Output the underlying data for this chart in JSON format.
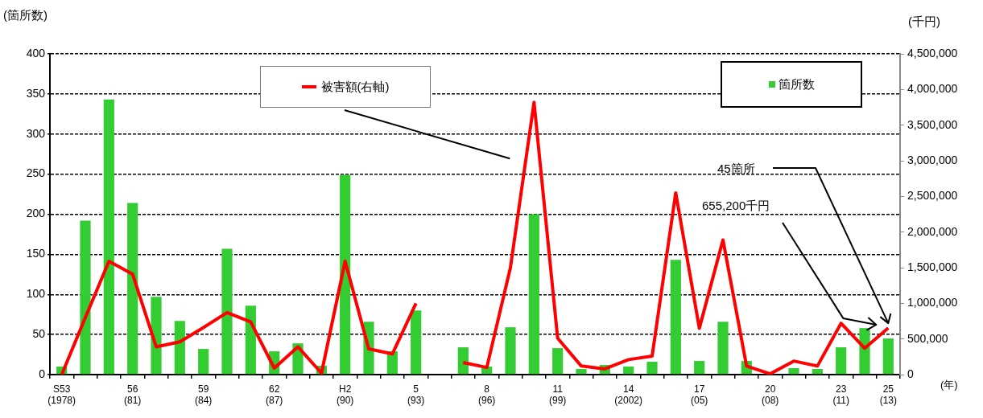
{
  "chart_data": {
    "type": "bar",
    "categories": [
      "S53\n(1978)",
      null,
      null,
      "56\n(81)",
      null,
      null,
      "59\n(84)",
      null,
      null,
      "62\n(87)",
      null,
      null,
      "H2\n(90)",
      null,
      null,
      "5\n(93)",
      null,
      null,
      "8\n(96)",
      null,
      null,
      "11\n(99)",
      null,
      null,
      "14\n(2002)",
      null,
      null,
      "17\n(05)",
      null,
      null,
      "20\n(08)",
      null,
      null,
      "23\n(11)",
      null,
      "25\n(13)"
    ],
    "series": [
      {
        "name": "箇所数",
        "color": "#33cc33",
        "values": [
          10,
          192,
          343,
          214,
          97,
          67,
          32,
          157,
          86,
          29,
          39,
          11,
          249,
          66,
          29,
          80,
          null,
          34,
          10,
          59,
          200,
          33,
          7,
          12,
          10,
          16,
          143,
          17,
          66,
          17,
          0,
          8,
          7,
          34,
          58,
          45
        ]
      },
      {
        "name": "被害額(右軸)",
        "type": "line",
        "axis": "y2",
        "color": "#ff0000",
        "values": [
          0,
          800000,
          1590000,
          1410000,
          390000,
          460000,
          660000,
          870000,
          740000,
          90000,
          390000,
          20000,
          1590000,
          360000,
          290000,
          1000000,
          null,
          170000,
          100000,
          1500000,
          3820000,
          510000,
          120000,
          80000,
          210000,
          260000,
          2550000,
          650000,
          1890000,
          120000,
          10000,
          190000,
          120000,
          720000,
          370000,
          655200
        ]
      }
    ],
    "ylabel": "(箇所数)",
    "y2label": "(千円)",
    "xlabel": "(年)",
    "ylim": [
      0,
      400
    ],
    "yticks": [
      0,
      50,
      100,
      150,
      200,
      250,
      300,
      350,
      400
    ],
    "y2lim": [
      0,
      4500000
    ],
    "y2ticks": [
      {
        "value": 0,
        "label": "0"
      },
      {
        "value": 500000,
        "label": "500,000"
      },
      {
        "value": 1000000,
        "label": "1,000,000"
      },
      {
        "value": 1500000,
        "label": "1,500,000"
      },
      {
        "value": 2000000,
        "label": "2,000,000"
      },
      {
        "value": 2500000,
        "label": "2,500,000"
      },
      {
        "value": 3000000,
        "label": "3,000,000"
      },
      {
        "value": 3500000,
        "label": "3,500,000"
      },
      {
        "value": 4000000,
        "label": "4,000,000"
      },
      {
        "value": 4500000,
        "label": "4,500,000"
      }
    ],
    "annotations": [
      "45箇所",
      "655,200千円"
    ],
    "grid": "y",
    "legend": "top right",
    "marker": "none",
    "line_style": "solid"
  }
}
